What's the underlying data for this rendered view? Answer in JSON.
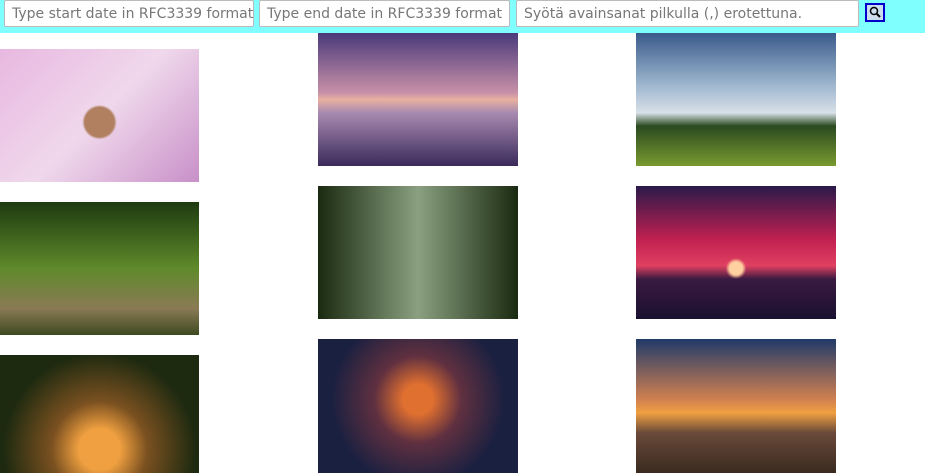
{
  "search": {
    "start_date_placeholder": "Type start date in RFC3339 format",
    "end_date_placeholder": "Type end date in RFC3339 format",
    "keywords_placeholder": "Syötä avainsanat pilkulla (,) erotettuna."
  }
}
